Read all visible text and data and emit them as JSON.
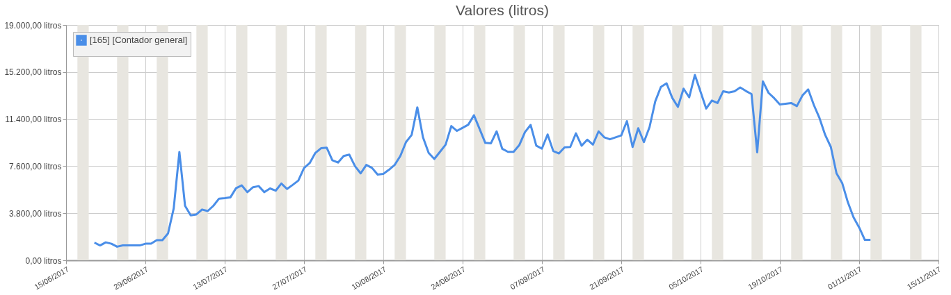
{
  "chart_data": {
    "type": "line",
    "title": "Valores (litros)",
    "x": [
      "2017-06-20",
      "2017-06-21",
      "2017-06-22",
      "2017-06-23",
      "2017-06-24",
      "2017-06-25",
      "2017-06-26",
      "2017-06-27",
      "2017-06-28",
      "2017-06-29",
      "2017-06-30",
      "2017-07-01",
      "2017-07-02",
      "2017-07-03",
      "2017-07-04",
      "2017-07-05",
      "2017-07-06",
      "2017-07-07",
      "2017-07-08",
      "2017-07-09",
      "2017-07-10",
      "2017-07-11",
      "2017-07-12",
      "2017-07-13",
      "2017-07-14",
      "2017-07-15",
      "2017-07-16",
      "2017-07-17",
      "2017-07-18",
      "2017-07-19",
      "2017-07-20",
      "2017-07-21",
      "2017-07-22",
      "2017-07-23",
      "2017-07-24",
      "2017-07-25",
      "2017-07-26",
      "2017-07-27",
      "2017-07-28",
      "2017-07-29",
      "2017-07-30",
      "2017-07-31",
      "2017-08-01",
      "2017-08-02",
      "2017-08-03",
      "2017-08-04",
      "2017-08-05",
      "2017-08-06",
      "2017-08-07",
      "2017-08-08",
      "2017-08-09",
      "2017-08-10",
      "2017-08-11",
      "2017-08-12",
      "2017-08-13",
      "2017-08-14",
      "2017-08-15",
      "2017-08-16",
      "2017-08-17",
      "2017-08-18",
      "2017-08-19",
      "2017-08-20",
      "2017-08-21",
      "2017-08-22",
      "2017-08-23",
      "2017-08-24",
      "2017-08-25",
      "2017-08-26",
      "2017-08-27",
      "2017-08-28",
      "2017-08-29",
      "2017-08-30",
      "2017-08-31",
      "2017-09-01",
      "2017-09-02",
      "2017-09-03",
      "2017-09-04",
      "2017-09-05",
      "2017-09-06",
      "2017-09-07",
      "2017-09-08",
      "2017-09-09",
      "2017-09-10",
      "2017-09-11",
      "2017-09-12",
      "2017-09-13",
      "2017-09-14",
      "2017-09-15",
      "2017-09-16",
      "2017-09-17",
      "2017-09-18",
      "2017-09-19",
      "2017-09-20",
      "2017-09-21",
      "2017-09-22",
      "2017-09-23",
      "2017-09-24",
      "2017-09-25",
      "2017-09-26",
      "2017-09-27",
      "2017-09-28",
      "2017-09-29",
      "2017-09-30",
      "2017-10-01",
      "2017-10-02",
      "2017-10-03",
      "2017-10-04",
      "2017-10-05",
      "2017-10-06",
      "2017-10-07",
      "2017-10-08",
      "2017-10-09",
      "2017-10-10",
      "2017-10-11",
      "2017-10-12",
      "2017-10-13",
      "2017-10-14",
      "2017-10-15",
      "2017-10-16",
      "2017-10-17",
      "2017-10-18",
      "2017-10-19",
      "2017-10-20",
      "2017-10-21",
      "2017-10-22",
      "2017-10-23",
      "2017-10-24",
      "2017-10-25",
      "2017-10-26",
      "2017-10-27",
      "2017-10-28",
      "2017-10-29",
      "2017-10-30",
      "2017-10-31",
      "2017-11-01",
      "2017-11-02",
      "2017-11-03",
      "2017-11-04"
    ],
    "series": [
      {
        "name": "[165] [Contador general]",
        "color": "#4a8ee8",
        "values": [
          1430,
          1200,
          1450,
          1340,
          1100,
          1200,
          1200,
          1200,
          1200,
          1340,
          1340,
          1630,
          1630,
          2170,
          4200,
          8750,
          4400,
          3630,
          3700,
          4100,
          3980,
          4400,
          4980,
          5020,
          5080,
          5820,
          6050,
          5500,
          5900,
          5990,
          5500,
          5800,
          5620,
          6200,
          5760,
          6090,
          6440,
          7450,
          7850,
          8670,
          9050,
          9100,
          8080,
          7890,
          8420,
          8530,
          7600,
          7020,
          7700,
          7460,
          6920,
          6980,
          7310,
          7700,
          8420,
          9540,
          10120,
          12350,
          9930,
          8670,
          8180,
          8760,
          9340,
          10840,
          10450,
          10700,
          10950,
          11710,
          10600,
          9480,
          9450,
          10410,
          9000,
          8760,
          8760,
          9300,
          10350,
          10930,
          9250,
          9020,
          10160,
          8820,
          8630,
          9120,
          9150,
          10250,
          9250,
          9740,
          9340,
          10410,
          9930,
          9770,
          9930,
          10080,
          11240,
          9150,
          10660,
          9540,
          10760,
          12830,
          14000,
          14290,
          13120,
          12390,
          13860,
          13160,
          14970,
          13610,
          12250,
          12900,
          12700,
          13650,
          13550,
          13650,
          13960,
          13670,
          13420,
          8720,
          14450,
          13520,
          13090,
          12580,
          12640,
          12700,
          12450,
          13320,
          13800,
          12540,
          11480,
          10120,
          9150,
          7020,
          6240,
          4690,
          3470,
          2650,
          1650,
          1650
        ]
      }
    ],
    "xlim": [
      "2017-06-15",
      "2017-11-16"
    ],
    "xticks": [
      {
        "value": "2017-06-15",
        "label": "15/06/2017"
      },
      {
        "value": "2017-06-29",
        "label": "29/06/2017"
      },
      {
        "value": "2017-07-13",
        "label": "13/07/2017"
      },
      {
        "value": "2017-07-27",
        "label": "27/07/2017"
      },
      {
        "value": "2017-08-10",
        "label": "10/08/2017"
      },
      {
        "value": "2017-08-24",
        "label": "24/08/2017"
      },
      {
        "value": "2017-09-07",
        "label": "07/09/2017"
      },
      {
        "value": "2017-09-21",
        "label": "21/09/2017"
      },
      {
        "value": "2017-10-05",
        "label": "05/10/2017"
      },
      {
        "value": "2017-10-19",
        "label": "19/10/2017"
      },
      {
        "value": "2017-11-01T23:00",
        "label": "01/11/2017"
      },
      {
        "value": "2017-11-15T23:00",
        "label": "15/11/2017"
      }
    ],
    "ylim": [
      0,
      19000
    ],
    "yticks": [
      {
        "value": 0,
        "label": "0,00 litros"
      },
      {
        "value": 3800,
        "label": "3.800,00 litros"
      },
      {
        "value": 7600,
        "label": "7.600,00 litros"
      },
      {
        "value": 11400,
        "label": "11.400,00 litros"
      },
      {
        "value": 15200,
        "label": "15.200,00 litros"
      },
      {
        "value": 19000,
        "label": "19.000,00 litros"
      }
    ],
    "bands": [
      {
        "axis": "x",
        "from": "2017-06-17",
        "to": "2017-06-19",
        "color": "#e8e6e0"
      },
      {
        "axis": "x",
        "from": "2017-06-24",
        "to": "2017-06-26",
        "color": "#e8e6e0"
      },
      {
        "axis": "x",
        "from": "2017-07-01",
        "to": "2017-07-03",
        "color": "#e8e6e0"
      },
      {
        "axis": "x",
        "from": "2017-07-08",
        "to": "2017-07-10",
        "color": "#e8e6e0"
      },
      {
        "axis": "x",
        "from": "2017-07-15",
        "to": "2017-07-17",
        "color": "#e8e6e0"
      },
      {
        "axis": "x",
        "from": "2017-07-22",
        "to": "2017-07-24",
        "color": "#e8e6e0"
      },
      {
        "axis": "x",
        "from": "2017-07-29",
        "to": "2017-07-31",
        "color": "#e8e6e0"
      },
      {
        "axis": "x",
        "from": "2017-08-05",
        "to": "2017-08-07",
        "color": "#e8e6e0"
      },
      {
        "axis": "x",
        "from": "2017-08-12",
        "to": "2017-08-14",
        "color": "#e8e6e0"
      },
      {
        "axis": "x",
        "from": "2017-08-19",
        "to": "2017-08-21",
        "color": "#e8e6e0"
      },
      {
        "axis": "x",
        "from": "2017-08-26",
        "to": "2017-08-28",
        "color": "#e8e6e0"
      },
      {
        "axis": "x",
        "from": "2017-09-02",
        "to": "2017-09-04",
        "color": "#e8e6e0"
      },
      {
        "axis": "x",
        "from": "2017-09-09",
        "to": "2017-09-11",
        "color": "#e8e6e0"
      },
      {
        "axis": "x",
        "from": "2017-09-16",
        "to": "2017-09-18",
        "color": "#e8e6e0"
      },
      {
        "axis": "x",
        "from": "2017-09-23",
        "to": "2017-09-25",
        "color": "#e8e6e0"
      },
      {
        "axis": "x",
        "from": "2017-09-30",
        "to": "2017-10-02",
        "color": "#e8e6e0"
      },
      {
        "axis": "x",
        "from": "2017-10-07",
        "to": "2017-10-09",
        "color": "#e8e6e0"
      },
      {
        "axis": "x",
        "from": "2017-10-14",
        "to": "2017-10-16",
        "color": "#e8e6e0"
      },
      {
        "axis": "x",
        "from": "2017-10-21",
        "to": "2017-10-23",
        "color": "#e8e6e0"
      },
      {
        "axis": "x",
        "from": "2017-10-28",
        "to": "2017-10-30",
        "color": "#e8e6e0"
      },
      {
        "axis": "x",
        "from": "2017-11-04",
        "to": "2017-11-06",
        "color": "#e8e6e0"
      },
      {
        "axis": "x",
        "from": "2017-11-11",
        "to": "2017-11-13",
        "color": "#e8e6e0"
      }
    ],
    "grid": true,
    "legend": "top left",
    "marker": "none",
    "line_style": "solid"
  }
}
